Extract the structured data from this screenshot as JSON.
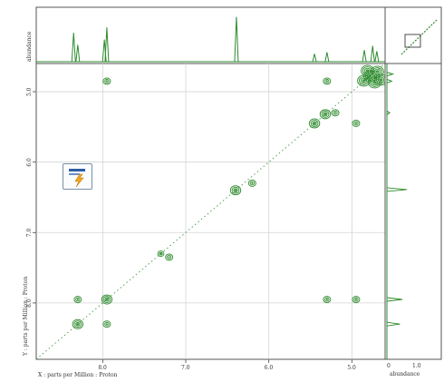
{
  "chart_data": {
    "type": "2d-nmr-contour",
    "x_axis": {
      "label": "X : parts per Million : Proton",
      "range_ppm": [
        8.8,
        4.6
      ],
      "ticks": [
        "8.0",
        "7.0",
        "6.0",
        "5.0"
      ],
      "tick_values": [
        8.0,
        7.0,
        6.0,
        5.0
      ]
    },
    "y_axis": {
      "label": "Y : parts per Million : Proton",
      "range_ppm": [
        4.6,
        8.8
      ],
      "ticks": [
        "5.0",
        "6.0",
        "7.0",
        "8.0"
      ],
      "tick_values": [
        5.0,
        6.0,
        7.0,
        8.0
      ]
    },
    "top_projection_label": "abundance",
    "side_projection_label": "abundance",
    "side_projection_ticks": [
      "0",
      "1.0"
    ],
    "grid": true,
    "peak_color": "#2e8b2e",
    "diagonal_peaks": [
      {
        "ppm": 4.78,
        "size": "large"
      },
      {
        "ppm": 5.32,
        "size": "medium"
      },
      {
        "ppm": 5.45,
        "size": "medium"
      },
      {
        "ppm": 6.4,
        "size": "medium"
      },
      {
        "ppm": 7.3,
        "size": "small"
      },
      {
        "ppm": 7.95,
        "size": "medium"
      },
      {
        "ppm": 8.3,
        "size": "medium"
      }
    ],
    "cross_peaks": [
      {
        "x": 7.95,
        "y": 4.85
      },
      {
        "x": 5.3,
        "y": 4.85
      },
      {
        "x": 4.95,
        "y": 5.45
      },
      {
        "x": 4.95,
        "y": 7.95
      },
      {
        "x": 8.3,
        "y": 7.95
      },
      {
        "x": 7.95,
        "y": 8.3
      },
      {
        "x": 6.2,
        "y": 6.3
      },
      {
        "x": 5.2,
        "y": 5.3
      },
      {
        "x": 5.3,
        "y": 7.95
      },
      {
        "x": 7.2,
        "y": 7.35
      }
    ],
    "top_projection_peaks": [
      {
        "ppm": 8.35,
        "height": 0.55
      },
      {
        "ppm": 8.3,
        "height": 0.32
      },
      {
        "ppm": 7.98,
        "height": 0.42
      },
      {
        "ppm": 7.95,
        "height": 0.65
      },
      {
        "ppm": 6.39,
        "height": 0.85
      },
      {
        "ppm": 5.45,
        "height": 0.15
      },
      {
        "ppm": 5.3,
        "height": 0.18
      },
      {
        "ppm": 4.85,
        "height": 0.22
      },
      {
        "ppm": 4.75,
        "height": 0.3
      },
      {
        "ppm": 4.7,
        "height": 0.2
      }
    ],
    "side_projection_peaks": [
      {
        "ppm": 4.75,
        "height": 0.25
      },
      {
        "ppm": 4.85,
        "height": 0.2
      },
      {
        "ppm": 5.3,
        "height": 0.12
      },
      {
        "ppm": 6.39,
        "height": 0.85
      },
      {
        "ppm": 7.95,
        "height": 0.65
      },
      {
        "ppm": 8.3,
        "height": 0.55
      }
    ]
  }
}
